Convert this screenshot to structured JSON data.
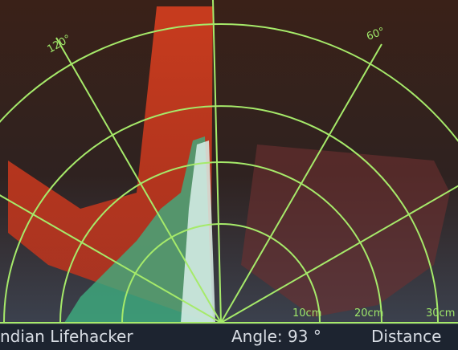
{
  "angle_labels": [
    "120°",
    "60°"
  ],
  "distance_labels": [
    "10cm",
    "20cm",
    "30cm"
  ],
  "footer": {
    "brand": "ndian Lifehacker",
    "angle": "Angle: 93 °",
    "distance": "Distance"
  }
}
